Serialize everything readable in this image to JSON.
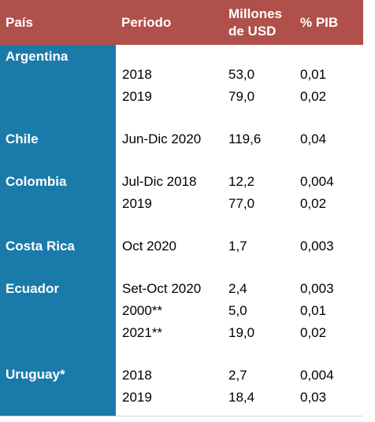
{
  "headers": {
    "country": "País",
    "period": "Periodo",
    "millions_line1": "Millones",
    "millions_line2": "de USD",
    "pib": "% PIB"
  },
  "groups": [
    {
      "country": "Argentina",
      "rows": [
        {
          "period": "2018",
          "millions": "53,0",
          "pib": "0,01"
        },
        {
          "period": "2019",
          "millions": "79,0",
          "pib": "0,02"
        }
      ]
    },
    {
      "country": "Chile",
      "rows": [
        {
          "period": "Jun-Dic 2020",
          "millions": "119,6",
          "pib": "0,04"
        }
      ]
    },
    {
      "country": "Colombia",
      "rows": [
        {
          "period": "Jul-Dic 2018",
          "millions": "12,2",
          "pib": "0,004"
        },
        {
          "period": "2019",
          "millions": "77,0",
          "pib": "0,02"
        }
      ]
    },
    {
      "country": "Costa Rica",
      "rows": [
        {
          "period": "Oct 2020",
          "millions": "1,7",
          "pib": "0,003"
        }
      ]
    },
    {
      "country": "Ecuador",
      "rows": [
        {
          "period": "Set-Oct 2020",
          "millions": "2,4",
          "pib": "0,003"
        },
        {
          "period": "2000**",
          "millions": "5,0",
          "pib": "0,01"
        },
        {
          "period": "2021**",
          "millions": "19,0",
          "pib": "0,02"
        }
      ]
    },
    {
      "country": "Uruguay*",
      "rows": [
        {
          "period": "2018",
          "millions": "2,7",
          "pib": "0,004"
        },
        {
          "period": "2019",
          "millions": "18,4",
          "pib": "0,03"
        }
      ]
    }
  ],
  "colors": {
    "header_bg": "#b0504b",
    "country_column_bg": "#1a7bab",
    "header_text": "#ffffff"
  }
}
